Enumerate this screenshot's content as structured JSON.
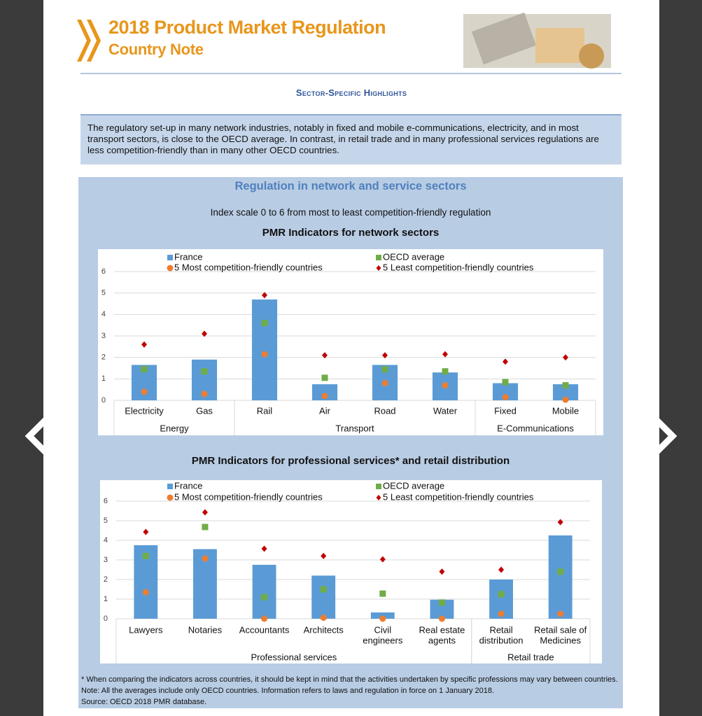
{
  "header": {
    "title_line1": "2018 Product Market Regulation",
    "title_line2": "Country Note"
  },
  "section": "Sector-Specific Highlights",
  "summary": "The regulatory set-up in many network industries, notably in fixed and mobile e-communications, electricity, and in most transport sectors, is close to the OECD average. In contrast, in retail trade and in many professional services regulations are less competition-friendly than in many other OECD countries.",
  "panel": {
    "title": "Regulation in network and service sectors",
    "subtitle": "Index scale 0 to 6 from most to least competition-friendly regulation"
  },
  "chart_data": [
    {
      "type": "bar",
      "title": "PMR Indicators for network sectors",
      "groups": [
        {
          "label": "Energy",
          "categories": [
            "Electricity",
            "Gas"
          ]
        },
        {
          "label": "Transport",
          "categories": [
            "Rail",
            "Air",
            "Road",
            "Water"
          ]
        },
        {
          "label": "E-Communications",
          "categories": [
            "Fixed",
            "Mobile"
          ]
        }
      ],
      "series": [
        {
          "name": "France",
          "marker": "bar",
          "color": "#5b9bd5",
          "values": [
            1.65,
            1.9,
            4.7,
            0.75,
            1.65,
            1.3,
            0.8,
            0.75
          ]
        },
        {
          "name": "OECD average",
          "marker": "square",
          "color": "#70ad47",
          "values": [
            1.45,
            1.35,
            3.6,
            1.05,
            1.45,
            1.35,
            0.85,
            0.7
          ]
        },
        {
          "name": "5 Most competition-friendly countries",
          "marker": "circle",
          "color": "#ed7d31",
          "values": [
            0.4,
            0.3,
            2.15,
            0.2,
            0.8,
            0.7,
            0.15,
            0.03
          ]
        },
        {
          "name": "5 Least competition-friendly countries",
          "marker": "diamond",
          "color": "#c00000",
          "values": [
            2.6,
            3.1,
            4.9,
            2.1,
            2.1,
            2.15,
            1.8,
            2.0
          ]
        }
      ],
      "ylim": [
        0,
        6
      ],
      "yticks": [
        0,
        1,
        2,
        3,
        4,
        5,
        6
      ],
      "grid": true
    },
    {
      "type": "bar",
      "title": "PMR Indicators for professional services* and retail distribution",
      "groups": [
        {
          "label": "Professional services",
          "categories": [
            [
              "Lawyers"
            ],
            [
              "Notaries"
            ],
            [
              "Accountants"
            ],
            [
              "Architects"
            ],
            [
              "Civil",
              "engineers"
            ],
            [
              "Real estate",
              "agents"
            ]
          ]
        },
        {
          "label": "Retail trade",
          "categories": [
            [
              "Retail",
              "distribution"
            ],
            [
              "Retail sale of",
              "Medicines"
            ]
          ]
        }
      ],
      "series": [
        {
          "name": "France",
          "marker": "bar",
          "color": "#5b9bd5",
          "values": [
            3.75,
            3.55,
            2.75,
            2.2,
            0.32,
            0.97,
            2.0,
            4.25
          ]
        },
        {
          "name": "OECD average",
          "marker": "square",
          "color": "#70ad47",
          "values": [
            3.2,
            4.68,
            1.1,
            1.5,
            1.28,
            0.82,
            1.25,
            2.4
          ]
        },
        {
          "name": "5 Most competition-friendly countries",
          "marker": "circle",
          "color": "#ed7d31",
          "values": [
            1.35,
            3.07,
            0,
            0.05,
            0,
            0,
            0.25,
            0.25
          ]
        },
        {
          "name": "5 Least competition-friendly countries",
          "marker": "diamond",
          "color": "#c00000",
          "values": [
            4.43,
            5.43,
            3.57,
            3.2,
            3.03,
            2.4,
            2.5,
            4.93
          ]
        }
      ],
      "ylim": [
        0,
        6
      ],
      "yticks": [
        0,
        1,
        2,
        3,
        4,
        5,
        6
      ],
      "grid": true
    }
  ],
  "notes": [
    "* When comparing the indicators across countries, it should be kept in mind that the activities undertaken by specific professions may vary between countries.",
    "Note: All the averages include only OECD countries. Information refers to laws and regulation in force on 1 January 2018.",
    "Source: OECD 2018 PMR database."
  ]
}
